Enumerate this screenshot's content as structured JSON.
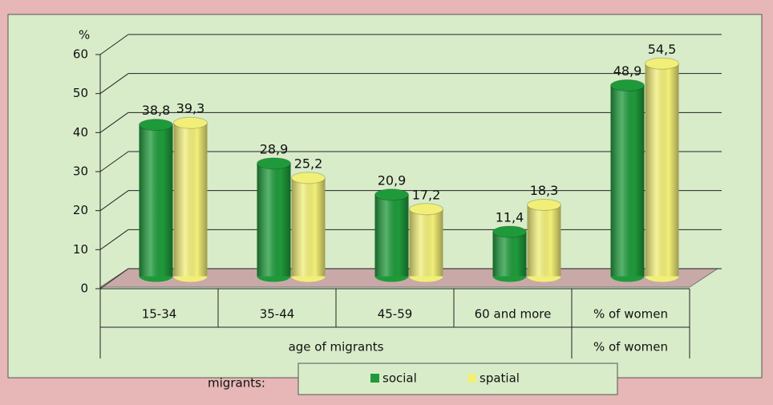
{
  "chart_data": {
    "type": "bar3d",
    "y_label": "%",
    "categories": [
      "15-34",
      "35-44",
      "45-59",
      "60 and more",
      "% of women"
    ],
    "groups": [
      {
        "label": "age of migrants",
        "span": [
          0,
          3
        ]
      },
      {
        "label": "% of women",
        "span": [
          4,
          4
        ]
      }
    ],
    "series": [
      {
        "name": "social",
        "color": "#1f9a3b",
        "values": [
          38.8,
          28.9,
          20.9,
          11.4,
          48.9
        ],
        "value_labels": [
          "38,8",
          "28,9",
          "20,9",
          "11,4",
          "48,9"
        ]
      },
      {
        "name": "spatial",
        "color": "#f2ef78",
        "values": [
          39.3,
          25.2,
          17.2,
          18.3,
          54.5
        ],
        "value_labels": [
          "39,3",
          "25,2",
          "17,2",
          "18,3",
          "54,5"
        ]
      }
    ],
    "legend_title": "migrants:",
    "ylim": [
      0,
      60
    ],
    "yticks": [
      0,
      10,
      20,
      30,
      40,
      50,
      60
    ],
    "grid": true
  }
}
